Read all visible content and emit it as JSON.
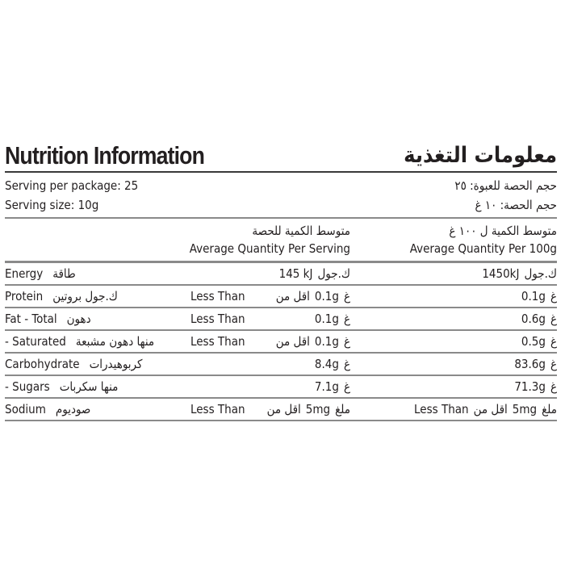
{
  "title": {
    "en": "Nutrition Information",
    "ar": "معلومات التغذية"
  },
  "serving": {
    "per_package_en": "Serving per package: 25",
    "per_package_ar": "حجم الحصة للعبوة: ٢٥",
    "size_en": "Serving size: 10g",
    "size_ar": "حجم الحصة: ١٠ غ"
  },
  "header": {
    "serving_ar": "متوسط الكمية للحصة",
    "serving_en": "Average Quantity Per Serving",
    "per100_ar": "متوسط الكمية ل ١٠٠ غ",
    "per100_en": "Average Quantity Per 100g"
  },
  "rows": [
    {
      "en": "Energy",
      "ar": "طاقة",
      "ser_prefix": "",
      "ser_prefix_ar": "",
      "ser_val": "145 kJ",
      "ser_unit": "ك.جول",
      "per_prefix": "",
      "per_prefix_ar": "",
      "per_val": "1450kJ",
      "per_unit": "ك.جول"
    },
    {
      "en": "Protein",
      "ar": "ك.جول بروتين",
      "ser_prefix": "Less Than",
      "ser_prefix_ar": "اقل من",
      "ser_val": "0.1g",
      "ser_unit": "غ",
      "per_prefix": "",
      "per_prefix_ar": "",
      "per_val": "0.1g",
      "per_unit": "غ"
    },
    {
      "en": "Fat - Total",
      "ar": "دهون",
      "ser_prefix": "Less Than",
      "ser_prefix_ar": "",
      "ser_val": "0.1g",
      "ser_unit": "غ",
      "per_prefix": "",
      "per_prefix_ar": "",
      "per_val": "0.6g",
      "per_unit": "غ"
    },
    {
      "en": "- Saturated",
      "ar": "منها دهون مشبعة",
      "ser_prefix": "Less Than",
      "ser_prefix_ar": "اقل من",
      "ser_val": "0.1g",
      "ser_unit": "غ",
      "per_prefix": "",
      "per_prefix_ar": "",
      "per_val": "0.5g",
      "per_unit": "غ"
    },
    {
      "en": "Carbohydrate",
      "ar": "كربوهيدرات",
      "ser_prefix": "",
      "ser_prefix_ar": "",
      "ser_val": "8.4g",
      "ser_unit": "غ",
      "per_prefix": "",
      "per_prefix_ar": "",
      "per_val": "83.6g",
      "per_unit": "غ"
    },
    {
      "en": "- Sugars",
      "ar": "منها سكربات",
      "ser_prefix": "",
      "ser_prefix_ar": "",
      "ser_val": "7.1g",
      "ser_unit": "غ",
      "per_prefix": "",
      "per_prefix_ar": "",
      "per_val": "71.3g",
      "per_unit": "غ"
    },
    {
      "en": "Sodium",
      "ar": "صوديوم",
      "ser_prefix": "Less Than",
      "ser_prefix_ar": "اقل من",
      "ser_val": "5mg",
      "ser_unit": "ملغ",
      "per_prefix": "Less Than",
      "per_prefix_ar": "اقل من",
      "per_val": "5mg",
      "per_unit": "ملغ"
    }
  ]
}
